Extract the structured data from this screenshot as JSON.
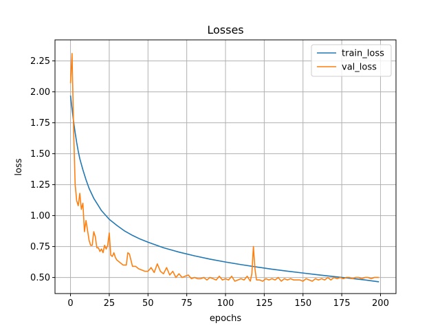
{
  "chart_data": {
    "type": "line",
    "title": "Losses",
    "xlabel": "epochs",
    "ylabel": "loss",
    "xlim": [
      -10,
      210
    ],
    "ylim": [
      0.37,
      2.42
    ],
    "xticks": [
      0,
      25,
      50,
      75,
      100,
      125,
      150,
      175,
      200
    ],
    "yticks": [
      0.5,
      0.75,
      1.0,
      1.25,
      1.5,
      1.75,
      2.0,
      2.25
    ],
    "xtick_labels": [
      "0",
      "25",
      "50",
      "75",
      "100",
      "125",
      "150",
      "175",
      "200"
    ],
    "ytick_labels": [
      "0.50",
      "0.75",
      "1.00",
      "1.25",
      "1.50",
      "1.75",
      "2.00",
      "2.25"
    ],
    "grid": true,
    "legend": "top-right",
    "series": [
      {
        "name": "train_loss",
        "color": "#1f77b4",
        "x": [
          0,
          1,
          2,
          3,
          4,
          5,
          6,
          8,
          10,
          12,
          15,
          18,
          20,
          25,
          30,
          35,
          40,
          45,
          50,
          60,
          70,
          80,
          90,
          100,
          110,
          120,
          130,
          140,
          150,
          160,
          170,
          180,
          190,
          199
        ],
        "y": [
          1.97,
          1.86,
          1.76,
          1.67,
          1.59,
          1.52,
          1.46,
          1.37,
          1.29,
          1.22,
          1.14,
          1.08,
          1.04,
          0.97,
          0.92,
          0.875,
          0.84,
          0.81,
          0.785,
          0.74,
          0.705,
          0.675,
          0.648,
          0.625,
          0.604,
          0.585,
          0.567,
          0.551,
          0.536,
          0.521,
          0.507,
          0.494,
          0.48,
          0.465
        ]
      },
      {
        "name": "val_loss",
        "color": "#ff7f0e",
        "x": [
          0,
          1,
          2,
          3,
          4,
          5,
          6,
          7,
          8,
          9,
          10,
          11,
          12,
          13,
          14,
          15,
          16,
          17,
          18,
          19,
          20,
          21,
          22,
          23,
          24,
          25,
          26,
          27,
          28,
          29,
          30,
          32,
          34,
          36,
          37,
          38,
          40,
          42,
          44,
          46,
          48,
          50,
          52,
          54,
          56,
          58,
          60,
          62,
          64,
          66,
          68,
          70,
          72,
          74,
          76,
          78,
          80,
          82,
          84,
          86,
          88,
          90,
          92,
          94,
          96,
          98,
          100,
          102,
          104,
          106,
          108,
          110,
          112,
          114,
          116,
          117,
          118,
          119,
          120,
          122,
          124,
          126,
          128,
          130,
          132,
          134,
          136,
          138,
          140,
          142,
          144,
          146,
          148,
          150,
          152,
          154,
          156,
          158,
          160,
          162,
          164,
          166,
          168,
          170,
          172,
          174,
          176,
          178,
          180,
          182,
          184,
          186,
          188,
          190,
          192,
          194,
          196,
          198,
          199
        ],
        "y": [
          2.07,
          2.31,
          1.7,
          1.25,
          1.12,
          1.08,
          1.18,
          1.05,
          1.1,
          0.87,
          0.96,
          0.88,
          0.8,
          0.76,
          0.76,
          0.87,
          0.83,
          0.74,
          0.74,
          0.71,
          0.73,
          0.7,
          0.76,
          0.73,
          0.76,
          0.86,
          0.68,
          0.67,
          0.7,
          0.66,
          0.64,
          0.62,
          0.6,
          0.6,
          0.7,
          0.69,
          0.59,
          0.59,
          0.57,
          0.56,
          0.55,
          0.55,
          0.58,
          0.54,
          0.61,
          0.55,
          0.53,
          0.58,
          0.52,
          0.55,
          0.5,
          0.53,
          0.5,
          0.51,
          0.52,
          0.49,
          0.5,
          0.49,
          0.49,
          0.5,
          0.48,
          0.5,
          0.49,
          0.48,
          0.51,
          0.48,
          0.49,
          0.48,
          0.51,
          0.47,
          0.48,
          0.49,
          0.48,
          0.51,
          0.47,
          0.53,
          0.75,
          0.57,
          0.48,
          0.48,
          0.47,
          0.49,
          0.48,
          0.49,
          0.48,
          0.5,
          0.47,
          0.49,
          0.48,
          0.49,
          0.48,
          0.48,
          0.48,
          0.47,
          0.49,
          0.48,
          0.47,
          0.49,
          0.48,
          0.49,
          0.48,
          0.5,
          0.48,
          0.5,
          0.49,
          0.5,
          0.49,
          0.5,
          0.5,
          0.49,
          0.5,
          0.5,
          0.49,
          0.5,
          0.5,
          0.49,
          0.5,
          0.5,
          0.5
        ]
      }
    ]
  }
}
